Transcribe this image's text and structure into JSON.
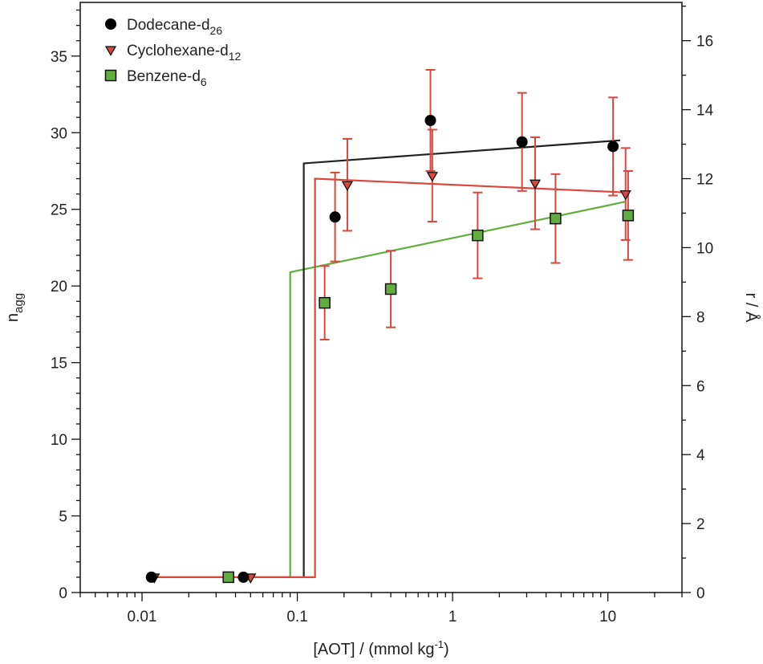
{
  "chart_data": {
    "type": "scatter",
    "x_scale": "log",
    "xlim": [
      0.004,
      30
    ],
    "ylim_left": [
      0,
      38.5
    ],
    "ylim_right": [
      0,
      17.11
    ],
    "xlabel_base": "[AOT] / (mmol kg",
    "xlabel_sup": "-1",
    "xlabel_end": ")",
    "ylabel_left_base": "n",
    "ylabel_left_sub": "agg",
    "ylabel_right": "r / Å",
    "x_ticks": [
      {
        "value": 0.01,
        "label": "0.01"
      },
      {
        "value": 0.1,
        "label": "0.1"
      },
      {
        "value": 1,
        "label": "1"
      },
      {
        "value": 10,
        "label": "10"
      }
    ],
    "y_ticks_left": [
      0,
      5,
      10,
      15,
      20,
      25,
      30,
      35
    ],
    "y_ticks_right": [
      0,
      2,
      4,
      6,
      8,
      10,
      12,
      14,
      16
    ],
    "legend_position": "top-left",
    "series": [
      {
        "name_base": "Dodecane-d",
        "name_sub": "26",
        "marker": "circle",
        "color": "#000000",
        "points": [
          {
            "x": 0.0115,
            "y": 1.0
          },
          {
            "x": 0.045,
            "y": 1.0
          },
          {
            "x": 0.175,
            "y": 24.5,
            "err": 2.9
          },
          {
            "x": 0.72,
            "y": 30.8,
            "err": 3.3
          },
          {
            "x": 2.8,
            "y": 29.4,
            "err": 3.2
          },
          {
            "x": 10.8,
            "y": 29.1,
            "err": 3.2
          }
        ],
        "fit_line": [
          [
            0.11,
            1.0
          ],
          [
            0.11,
            28.0
          ],
          [
            12.0,
            29.5
          ]
        ]
      },
      {
        "name_base": "Cyclohexane-d",
        "name_sub": "12",
        "marker": "triangle-down",
        "color": "#d9473d",
        "points": [
          {
            "x": 0.012,
            "y": 1.0
          },
          {
            "x": 0.05,
            "y": 1.0
          },
          {
            "x": 0.21,
            "y": 26.6,
            "err": 3.0
          },
          {
            "x": 0.74,
            "y": 27.2,
            "err": 3.0
          },
          {
            "x": 3.4,
            "y": 26.7,
            "err": 3.0
          },
          {
            "x": 13.0,
            "y": 26.0,
            "err": 3.0
          }
        ],
        "fit_line": [
          [
            0.011,
            1.0
          ],
          [
            0.13,
            1.0
          ],
          [
            0.13,
            27.0
          ],
          [
            13.0,
            26.1
          ]
        ]
      },
      {
        "name_base": "Benzene-d",
        "name_sub": "6",
        "marker": "square",
        "color": "#5fae3e",
        "points": [
          {
            "x": 0.036,
            "y": 1.0
          },
          {
            "x": 0.15,
            "y": 18.9,
            "err": 2.4
          },
          {
            "x": 0.4,
            "y": 19.8,
            "err": 2.5
          },
          {
            "x": 1.45,
            "y": 23.3,
            "err": 2.8
          },
          {
            "x": 4.6,
            "y": 24.4,
            "err": 2.9
          },
          {
            "x": 13.5,
            "y": 24.6,
            "err": 2.9
          }
        ],
        "fit_line": [
          [
            0.011,
            1.0
          ],
          [
            0.09,
            1.0
          ],
          [
            0.09,
            20.9
          ],
          [
            13.0,
            25.5
          ]
        ]
      }
    ],
    "error_bar_color": "#d9473d"
  }
}
